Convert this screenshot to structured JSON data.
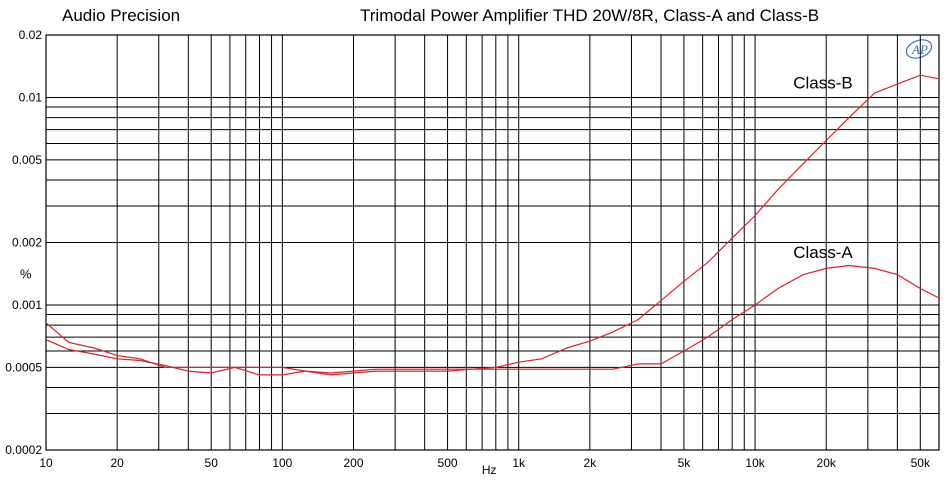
{
  "header": {
    "brand": "Audio Precision",
    "title": "Trimodal Power Amplifier THD 20W/8R, Class-A and Class-B"
  },
  "logo": {
    "icon": "ap-logo-icon",
    "text": "AP",
    "color": "#3a6fc4"
  },
  "chart_data": {
    "type": "line",
    "title": "Trimodal Power Amplifier THD 20W/8R, Class-A and Class-B",
    "xlabel": "Hz",
    "ylabel": "%",
    "x_scale": "log",
    "y_scale": "log",
    "xlim": [
      10,
      60000
    ],
    "ylim": [
      0.0002,
      0.02
    ],
    "grid": true,
    "x_ticks": [
      10,
      20,
      50,
      100,
      200,
      500,
      1000,
      2000,
      5000,
      10000,
      20000,
      50000
    ],
    "x_tick_labels": [
      "10",
      "20",
      "50",
      "100",
      "200",
      "500",
      "1k",
      "2k",
      "5k",
      "10k",
      "20k",
      "50k"
    ],
    "y_ticks": [
      0.0002,
      0.0005,
      0.001,
      0.002,
      0.005,
      0.01,
      0.02
    ],
    "y_tick_labels": [
      "0.0002",
      "0.0005",
      "0.001",
      "0.002",
      "0.005",
      "0.01",
      "0.02"
    ],
    "line_color": "#e0202a",
    "series": [
      {
        "name": "Class-B",
        "x": [
          10,
          12.5,
          16,
          20,
          25,
          32,
          40,
          50,
          63,
          80,
          100,
          125,
          160,
          200,
          250,
          320,
          400,
          500,
          630,
          800,
          1000,
          1250,
          1600,
          2000,
          2500,
          3200,
          4000,
          5000,
          6300,
          8000,
          10000,
          12500,
          16000,
          20000,
          25000,
          32000,
          40000,
          50000,
          60000
        ],
        "y": [
          0.00082,
          0.00066,
          0.00062,
          0.00057,
          0.00055,
          0.0005,
          0.0005,
          0.0005,
          0.0005,
          0.0005,
          0.0005,
          0.00048,
          0.00047,
          0.00048,
          0.00049,
          0.00049,
          0.00049,
          0.00049,
          0.00049,
          0.0005,
          0.00053,
          0.00055,
          0.00062,
          0.00067,
          0.00074,
          0.00085,
          0.00105,
          0.0013,
          0.0016,
          0.0021,
          0.0027,
          0.0036,
          0.0048,
          0.0062,
          0.008,
          0.0105,
          0.0116,
          0.0128,
          0.0123
        ]
      },
      {
        "name": "Class-A",
        "x": [
          10,
          12.5,
          16,
          20,
          25,
          32,
          40,
          50,
          63,
          80,
          100,
          125,
          160,
          200,
          250,
          320,
          400,
          500,
          630,
          800,
          1000,
          1250,
          1600,
          2000,
          2500,
          3200,
          4000,
          5000,
          6300,
          8000,
          10000,
          12500,
          16000,
          20000,
          25000,
          32000,
          40000,
          50000,
          60000
        ],
        "y": [
          0.00068,
          0.00061,
          0.00058,
          0.00055,
          0.00054,
          0.00051,
          0.00048,
          0.00047,
          0.0005,
          0.00046,
          0.00046,
          0.00048,
          0.00046,
          0.00047,
          0.00048,
          0.00048,
          0.00048,
          0.00048,
          0.00049,
          0.00049,
          0.00049,
          0.00049,
          0.00049,
          0.00049,
          0.00049,
          0.00052,
          0.00052,
          0.0006,
          0.0007,
          0.00085,
          0.001,
          0.0012,
          0.0014,
          0.0015,
          0.00155,
          0.0015,
          0.0014,
          0.0012,
          0.00108
        ]
      }
    ],
    "annotations": [
      "Class-B",
      "Class-A"
    ]
  }
}
